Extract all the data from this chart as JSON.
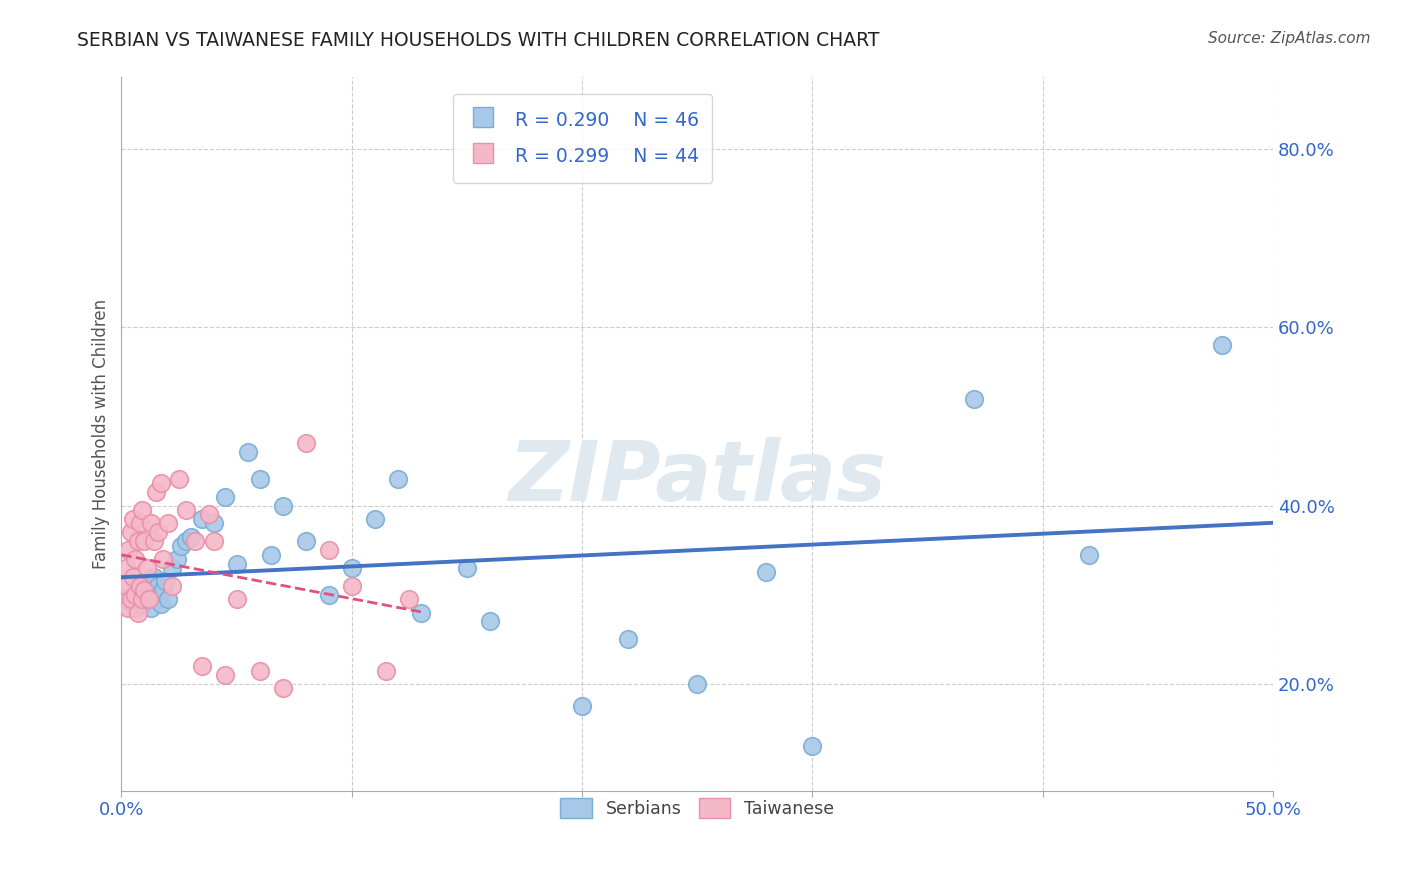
{
  "title": "SERBIAN VS TAIWANESE FAMILY HOUSEHOLDS WITH CHILDREN CORRELATION CHART",
  "source": "Source: ZipAtlas.com",
  "ylabel": "Family Households with Children",
  "xlim": [
    0.0,
    0.5
  ],
  "ylim": [
    0.08,
    0.88
  ],
  "xtick_positions": [
    0.0,
    0.1,
    0.2,
    0.3,
    0.4,
    0.5
  ],
  "xtick_labels": [
    "0.0%",
    "",
    "",
    "",
    "",
    "50.0%"
  ],
  "ytick_values": [
    0.2,
    0.4,
    0.6,
    0.8
  ],
  "ytick_labels": [
    "20.0%",
    "40.0%",
    "60.0%",
    "80.0%"
  ],
  "serbian_R": 0.29,
  "serbian_N": 46,
  "taiwanese_R": 0.299,
  "taiwanese_N": 44,
  "serbian_color": "#a8c8e8",
  "serbian_edge_color": "#7aadd4",
  "taiwanese_color": "#f5b8c8",
  "taiwanese_edge_color": "#e890a8",
  "regression_serbian_color": "#4472c4",
  "regression_taiwanese_color": "#e05080",
  "background_color": "#ffffff",
  "grid_color": "#c8c8c8",
  "title_color": "#222222",
  "axis_label_color": "#555555",
  "tick_color": "#3366cc",
  "watermark_color": "#e0e8f0",
  "legend_r_color": "#3366cc",
  "serbian_x": [
    0.004,
    0.005,
    0.006,
    0.007,
    0.008,
    0.009,
    0.01,
    0.011,
    0.012,
    0.013,
    0.014,
    0.015,
    0.016,
    0.017,
    0.018,
    0.019,
    0.02,
    0.022,
    0.024,
    0.026,
    0.028,
    0.03,
    0.035,
    0.04,
    0.045,
    0.05,
    0.055,
    0.06,
    0.065,
    0.07,
    0.08,
    0.09,
    0.1,
    0.11,
    0.12,
    0.13,
    0.15,
    0.16,
    0.2,
    0.22,
    0.25,
    0.28,
    0.3,
    0.37,
    0.42,
    0.478
  ],
  "serbian_y": [
    0.295,
    0.3,
    0.285,
    0.305,
    0.31,
    0.29,
    0.295,
    0.315,
    0.3,
    0.285,
    0.32,
    0.295,
    0.31,
    0.29,
    0.305,
    0.315,
    0.295,
    0.33,
    0.34,
    0.355,
    0.36,
    0.365,
    0.385,
    0.38,
    0.41,
    0.335,
    0.46,
    0.43,
    0.345,
    0.4,
    0.36,
    0.3,
    0.33,
    0.385,
    0.43,
    0.28,
    0.33,
    0.27,
    0.175,
    0.25,
    0.2,
    0.325,
    0.13,
    0.52,
    0.345,
    0.58
  ],
  "taiwanese_x": [
    0.001,
    0.002,
    0.002,
    0.003,
    0.003,
    0.004,
    0.004,
    0.005,
    0.005,
    0.006,
    0.006,
    0.007,
    0.007,
    0.008,
    0.008,
    0.009,
    0.009,
    0.01,
    0.01,
    0.011,
    0.012,
    0.013,
    0.014,
    0.015,
    0.016,
    0.017,
    0.018,
    0.02,
    0.022,
    0.025,
    0.028,
    0.032,
    0.035,
    0.038,
    0.04,
    0.045,
    0.05,
    0.06,
    0.07,
    0.08,
    0.09,
    0.1,
    0.115,
    0.125
  ],
  "taiwanese_y": [
    0.295,
    0.31,
    0.33,
    0.285,
    0.35,
    0.295,
    0.37,
    0.32,
    0.385,
    0.3,
    0.34,
    0.28,
    0.36,
    0.31,
    0.38,
    0.295,
    0.395,
    0.305,
    0.36,
    0.33,
    0.295,
    0.38,
    0.36,
    0.415,
    0.37,
    0.425,
    0.34,
    0.38,
    0.31,
    0.43,
    0.395,
    0.36,
    0.22,
    0.39,
    0.36,
    0.21,
    0.295,
    0.215,
    0.195,
    0.47,
    0.35,
    0.31,
    0.215,
    0.295
  ]
}
